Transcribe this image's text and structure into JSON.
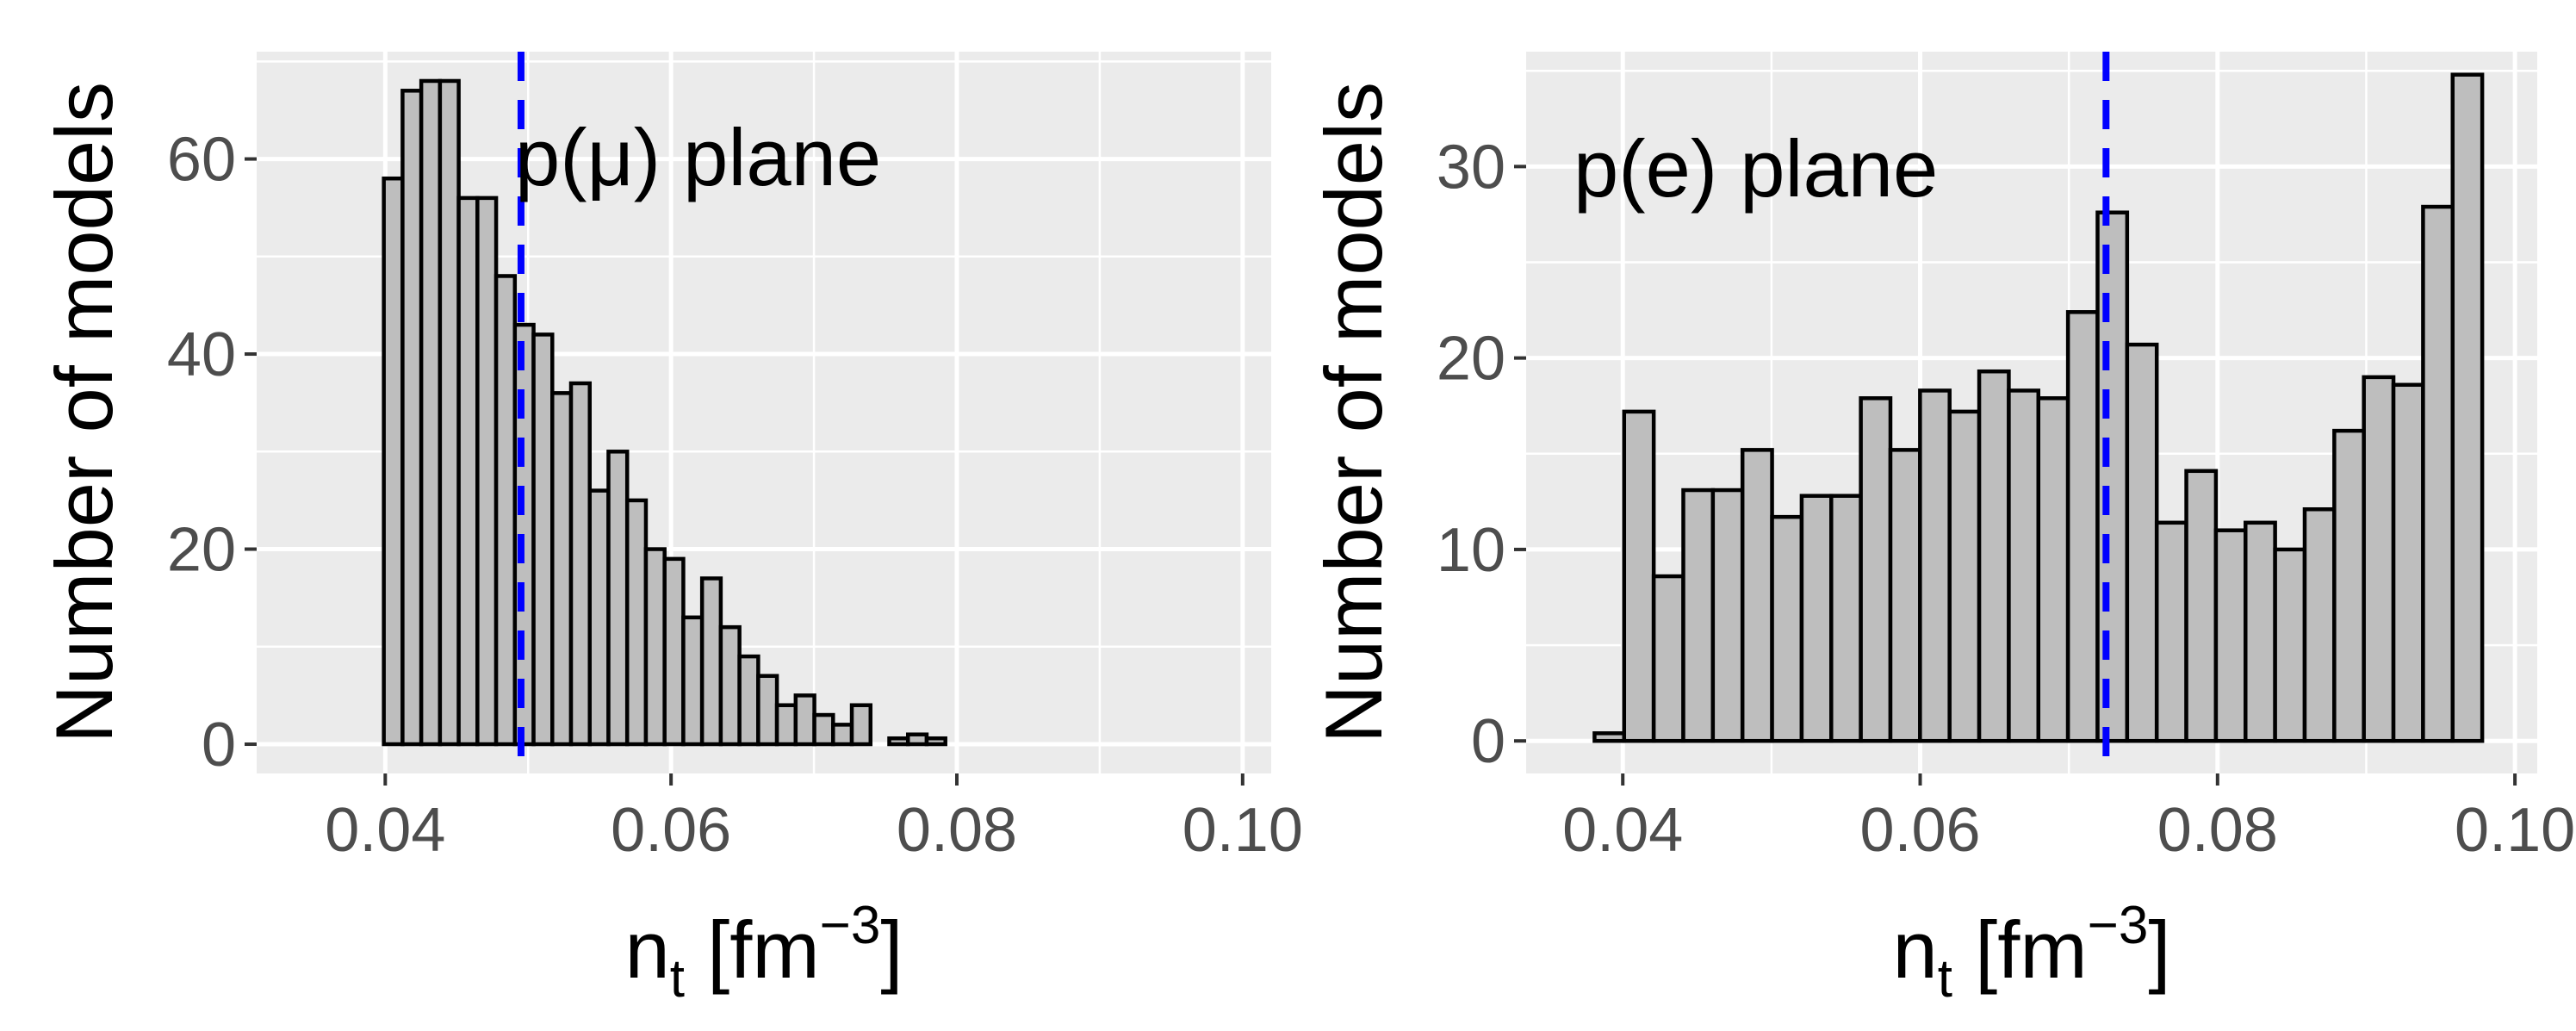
{
  "colors": {
    "panel_background": "#ebebeb",
    "grid": "#ffffff",
    "bar_fill": "#bebebe",
    "bar_outline": "#000000",
    "reference_line": "#0000ff",
    "tick_text": "#4d4d4d"
  },
  "chart_data": [
    {
      "type": "bar",
      "subtype": "histogram",
      "annotation": "p(μ) plane",
      "xlabel": {
        "base": "n",
        "sub": "t",
        "unit_open": " [fm",
        "sup": "−3",
        "unit_close": "]"
      },
      "ylabel": "Number of models",
      "xlim": [
        0.031,
        0.102
      ],
      "ylim": [
        -3,
        71
      ],
      "x_ticks": [
        0.04,
        0.06,
        0.08,
        0.1
      ],
      "x_tick_labels": [
        "0.04",
        "0.06",
        "0.08",
        "0.10"
      ],
      "y_ticks": [
        0,
        20,
        40,
        60
      ],
      "y_tick_labels": [
        "0",
        "20",
        "40",
        "60"
      ],
      "grid": true,
      "bin_start": 0.0399,
      "bin_width": 0.00131,
      "values": [
        58,
        67,
        68,
        68,
        56,
        56,
        48,
        43,
        42,
        36,
        37,
        26,
        30,
        25,
        20,
        19,
        13,
        17,
        12,
        9,
        7,
        4,
        5,
        3,
        2,
        4,
        0,
        0.6,
        1,
        0.6
      ],
      "reference_line_x": 0.0495,
      "reference_line_style": "dashed"
    },
    {
      "type": "bar",
      "subtype": "histogram",
      "annotation": "p(e) plane",
      "xlabel": {
        "base": "n",
        "sub": "t",
        "unit_open": " [fm",
        "sup": "−3",
        "unit_close": "]"
      },
      "ylabel": "Number of models",
      "xlim": [
        0.0335,
        0.1015
      ],
      "ylim": [
        -1.7,
        36
      ],
      "x_ticks": [
        0.04,
        0.06,
        0.08,
        0.1
      ],
      "x_tick_labels": [
        "0.04",
        "0.06",
        "0.08",
        "0.10"
      ],
      "y_ticks": [
        0,
        10,
        20,
        30
      ],
      "y_tick_labels": [
        "0",
        "10",
        "20",
        "30"
      ],
      "grid": true,
      "bin_start": 0.0381,
      "bin_width": 0.00199,
      "values": [
        0.4,
        17.2,
        8.6,
        13.1,
        13.1,
        15.2,
        11.7,
        12.8,
        12.8,
        17.9,
        15.2,
        18.3,
        17.2,
        19.3,
        18.3,
        17.9,
        22.4,
        27.6,
        20.7,
        11.4,
        14.1,
        11.0,
        11.4,
        10.0,
        12.1,
        16.2,
        19.0,
        18.6,
        27.9,
        34.8
      ],
      "reference_line_x": 0.0725,
      "reference_line_style": "dashed"
    }
  ]
}
